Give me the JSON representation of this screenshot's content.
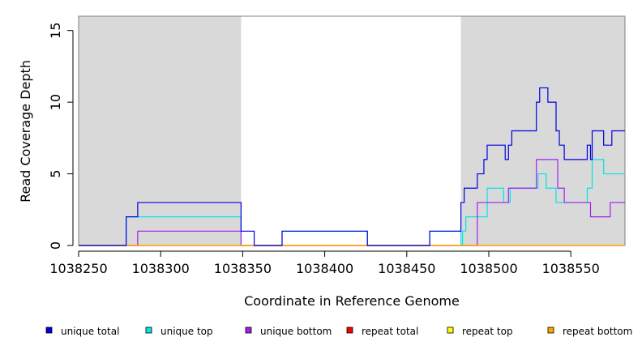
{
  "chart_data": {
    "type": "line",
    "step": true,
    "xlabel": "Coordinate in Reference Genome",
    "ylabel": "Read Coverage Depth",
    "xlim": [
      1038250,
      1038583
    ],
    "ylim": [
      0,
      16
    ],
    "x_ticks": [
      1038250,
      1038300,
      1038350,
      1038400,
      1038450,
      1038500,
      1038550
    ],
    "y_ticks": [
      0,
      5,
      10,
      15
    ],
    "shaded_regions": [
      [
        1038250,
        1038349
      ],
      [
        1038483,
        1038583
      ]
    ],
    "shade_color": "#d9d9d9",
    "legend_position": "bottom",
    "series": [
      {
        "name": "unique top",
        "color": "#00e5e5",
        "points": [
          [
            1038250,
            0
          ],
          [
            1038279,
            2
          ],
          [
            1038349,
            0
          ],
          [
            1038374,
            1
          ],
          [
            1038426,
            0
          ],
          [
            1038464,
            1
          ],
          [
            1038483,
            0
          ],
          [
            1038484,
            1
          ],
          [
            1038486,
            2
          ],
          [
            1038499,
            4
          ],
          [
            1038509,
            3
          ],
          [
            1038513,
            4
          ],
          [
            1038530,
            5
          ],
          [
            1038535,
            4
          ],
          [
            1038541,
            3
          ],
          [
            1038560,
            4
          ],
          [
            1038563,
            6
          ],
          [
            1038570,
            5
          ],
          [
            1038583,
            5
          ]
        ]
      },
      {
        "name": "unique bottom",
        "color": "#a020f0",
        "points": [
          [
            1038250,
            0
          ],
          [
            1038286,
            1
          ],
          [
            1038349,
            0
          ],
          [
            1038493,
            3
          ],
          [
            1038512,
            4
          ],
          [
            1038529,
            6
          ],
          [
            1038542,
            4
          ],
          [
            1038546,
            3
          ],
          [
            1038562,
            2
          ],
          [
            1038574,
            3
          ],
          [
            1038583,
            3
          ]
        ]
      },
      {
        "name": "repeat total",
        "color": "#ff0000",
        "points": [
          [
            1038250,
            0
          ],
          [
            1038583,
            0
          ]
        ]
      },
      {
        "name": "repeat top",
        "color": "#ffff00",
        "points": [
          [
            1038250,
            0
          ],
          [
            1038583,
            0
          ]
        ]
      },
      {
        "name": "repeat bottom",
        "color": "#ffa500",
        "points": [
          [
            1038250,
            0
          ],
          [
            1038583,
            0
          ]
        ]
      },
      {
        "name": "unique total",
        "color": "#0000e0",
        "points": [
          [
            1038250,
            0
          ],
          [
            1038279,
            2
          ],
          [
            1038286,
            3
          ],
          [
            1038349,
            1
          ],
          [
            1038357,
            0
          ],
          [
            1038374,
            1
          ],
          [
            1038426,
            0
          ],
          [
            1038464,
            1
          ],
          [
            1038483,
            3
          ],
          [
            1038485,
            4
          ],
          [
            1038493,
            5
          ],
          [
            1038497,
            6
          ],
          [
            1038499,
            7
          ],
          [
            1038510,
            6
          ],
          [
            1038512,
            7
          ],
          [
            1038514,
            8
          ],
          [
            1038529,
            10
          ],
          [
            1038531,
            11
          ],
          [
            1038536,
            10
          ],
          [
            1038541,
            8
          ],
          [
            1038543,
            7
          ],
          [
            1038546,
            6
          ],
          [
            1038560,
            7
          ],
          [
            1038562,
            6
          ],
          [
            1038563,
            8
          ],
          [
            1038570,
            7
          ],
          [
            1038575,
            8
          ],
          [
            1038583,
            8
          ]
        ]
      }
    ],
    "legend": [
      {
        "label": "unique total",
        "color": "#0000e0"
      },
      {
        "label": "unique top",
        "color": "#00e5e5"
      },
      {
        "label": "unique bottom",
        "color": "#a020f0"
      },
      {
        "label": "repeat total",
        "color": "#ff0000"
      },
      {
        "label": "repeat top",
        "color": "#ffff00"
      },
      {
        "label": "repeat bottom",
        "color": "#ffa500"
      }
    ]
  }
}
